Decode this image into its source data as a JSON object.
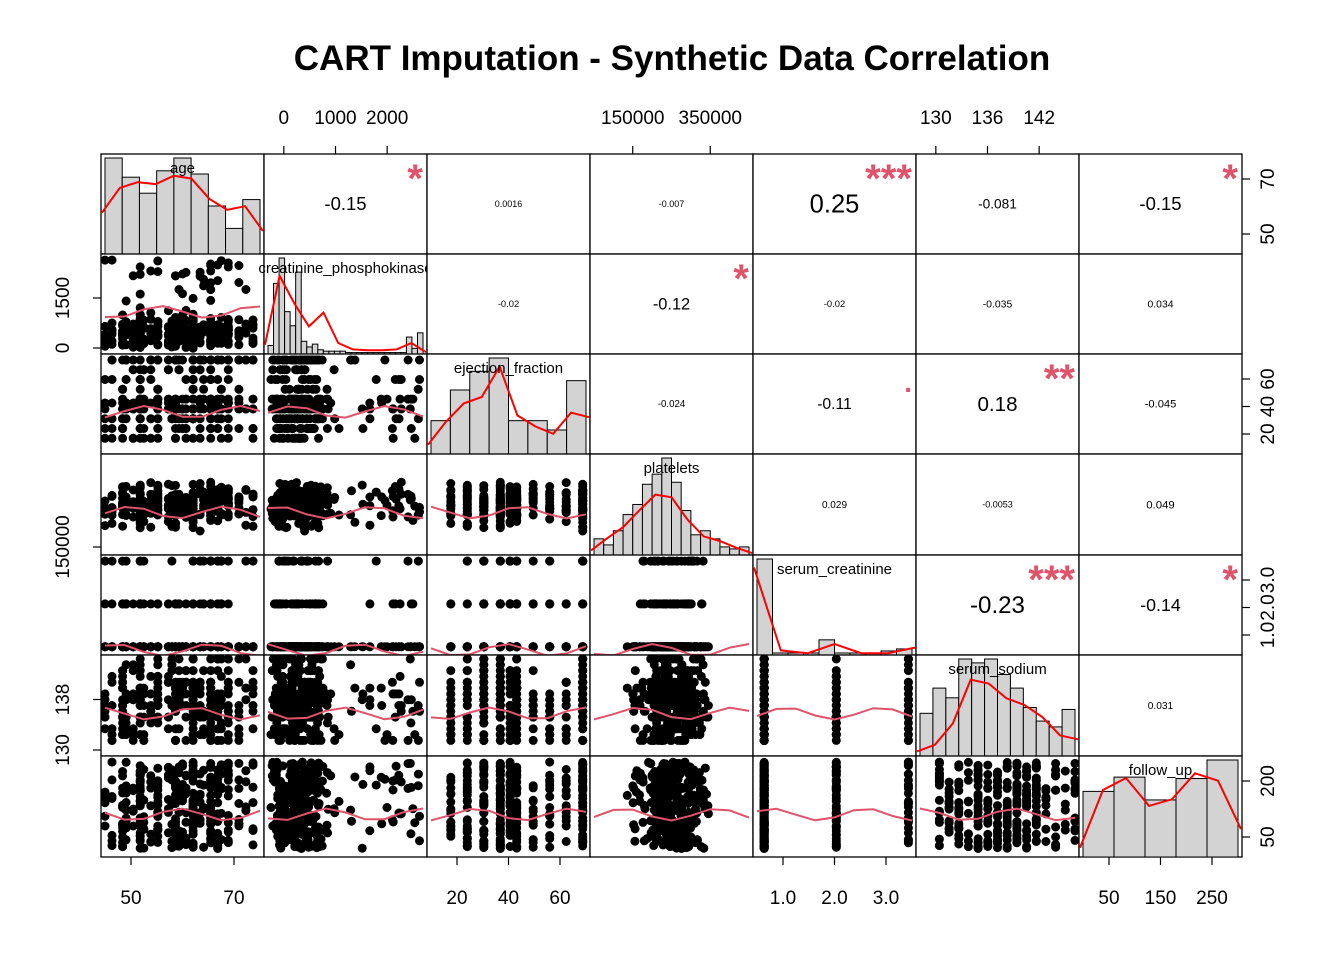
{
  "chart_data": {
    "type": "scatter-matrix",
    "title": "CART Imputation - Synthetic Data Correlation",
    "variables": [
      "age",
      "creatinine_phosphokinase",
      "ejection_fraction",
      "platelets",
      "serum_creatinine",
      "serum_sodium",
      "follow_up"
    ],
    "ranges": [
      [
        40,
        84
      ],
      [
        -30,
        2200
      ],
      [
        14,
        61
      ],
      [
        50000,
        480000
      ],
      [
        0.9,
        3.05
      ],
      [
        128,
        144
      ],
      [
        10,
        255
      ]
    ],
    "axis_ticks": {
      "top": [
        [
          "0",
          "1000",
          "2000"
        ],
        [
          "150000",
          "350000"
        ],
        [
          "130",
          "136",
          "142"
        ]
      ],
      "right": [
        [
          "50",
          "70"
        ],
        [
          "20",
          "40",
          "60"
        ],
        [
          "1.0",
          "2.0",
          "3.0"
        ],
        [
          "50",
          "200"
        ]
      ],
      "left": [
        [
          "0",
          "1500"
        ],
        [
          "150000"
        ],
        [
          "130",
          "138"
        ]
      ],
      "bottom": [
        [
          "50",
          "70"
        ],
        [
          "20",
          "40",
          "60"
        ],
        [
          "1.0",
          "2.0",
          "3.0"
        ],
        [
          "50",
          "150",
          "250"
        ]
      ]
    },
    "correlations": [
      {
        "row": 0,
        "col": 1,
        "value": "-0.15",
        "stars": "*"
      },
      {
        "row": 0,
        "col": 2,
        "value": "0.0016",
        "stars": ""
      },
      {
        "row": 0,
        "col": 3,
        "value": "-0.007",
        "stars": ""
      },
      {
        "row": 0,
        "col": 4,
        "value": "0.25",
        "stars": "***"
      },
      {
        "row": 0,
        "col": 5,
        "value": "-0.081",
        "stars": ""
      },
      {
        "row": 0,
        "col": 6,
        "value": "-0.15",
        "stars": "*"
      },
      {
        "row": 1,
        "col": 2,
        "value": "-0.02",
        "stars": ""
      },
      {
        "row": 1,
        "col": 3,
        "value": "-0.12",
        "stars": "*"
      },
      {
        "row": 1,
        "col": 4,
        "value": "-0.02",
        "stars": ""
      },
      {
        "row": 1,
        "col": 5,
        "value": "-0.035",
        "stars": ""
      },
      {
        "row": 1,
        "col": 6,
        "value": "0.034",
        "stars": ""
      },
      {
        "row": 2,
        "col": 3,
        "value": "-0.024",
        "stars": ""
      },
      {
        "row": 2,
        "col": 4,
        "value": "-0.11",
        "stars": "."
      },
      {
        "row": 2,
        "col": 5,
        "value": "0.18",
        "stars": "**"
      },
      {
        "row": 2,
        "col": 6,
        "value": "-0.045",
        "stars": ""
      },
      {
        "row": 3,
        "col": 4,
        "value": "0.029",
        "stars": ""
      },
      {
        "row": 3,
        "col": 5,
        "value": "-0.0053",
        "stars": ""
      },
      {
        "row": 3,
        "col": 6,
        "value": "0.049",
        "stars": ""
      },
      {
        "row": 4,
        "col": 5,
        "value": "-0.23",
        "stars": "***"
      },
      {
        "row": 4,
        "col": 6,
        "value": "-0.14",
        "stars": "*"
      },
      {
        "row": 5,
        "col": 6,
        "value": "0.031",
        "stars": ""
      }
    ],
    "histograms": [
      {
        "var": "age",
        "counts": [
          30,
          24,
          19,
          26,
          30,
          25,
          15,
          8,
          17
        ],
        "density": [
          0.45,
          0.72,
          0.78,
          0.76,
          0.85,
          0.82,
          0.6,
          0.48,
          0.52,
          0.25
        ]
      },
      {
        "var": "creatinine_phosphokinase",
        "counts": [
          6,
          50,
          68,
          30,
          20,
          58,
          9,
          5,
          7,
          3,
          2,
          2,
          2,
          2,
          1,
          1,
          1,
          1,
          1,
          1,
          1,
          1,
          1,
          1,
          1,
          12,
          4,
          15
        ],
        "density": [
          0.1,
          0.85,
          0.55,
          0.3,
          0.45,
          0.12,
          0.05,
          0.04,
          0.04,
          0.05,
          0.12,
          0.02
        ]
      },
      {
        "var": "ejection_fraction",
        "counts": [
          25,
          48,
          62,
          72,
          25,
          25,
          18,
          55
        ],
        "density": [
          0.1,
          0.35,
          0.55,
          0.62,
          0.95,
          0.42,
          0.3,
          0.22,
          0.45,
          0.4
        ]
      },
      {
        "var": "platelets",
        "counts": [
          8,
          5,
          12,
          20,
          25,
          35,
          40,
          48,
          36,
          22,
          10,
          12,
          8,
          4,
          3,
          4
        ],
        "density": [
          0.05,
          0.18,
          0.3,
          0.48,
          0.65,
          0.62,
          0.38,
          0.2,
          0.15,
          0.08,
          0.02
        ]
      },
      {
        "var": "serum_creatinine",
        "counts": [
          95,
          2,
          2,
          2,
          15,
          2,
          2,
          2,
          4,
          6
        ],
        "density": [
          0.95,
          0.05,
          0.02,
          0.12,
          0.02,
          0.02,
          0.08
        ]
      },
      {
        "var": "serum_sodium",
        "counts": [
          22,
          35,
          30,
          50,
          48,
          50,
          42,
          35,
          25,
          18,
          15,
          24
        ],
        "density": [
          0.05,
          0.12,
          0.35,
          0.82,
          0.78,
          0.62,
          0.55,
          0.42,
          0.22,
          0.18
        ]
      },
      {
        "var": "follow_up",
        "counts": [
          46,
          56,
          40,
          55,
          68
        ],
        "density": [
          0.1,
          0.72,
          0.85,
          0.55,
          0.62,
          0.9,
          0.82,
          0.3
        ]
      }
    ],
    "scatter_smooth": {
      "sample_size": 300,
      "smoother_color": "#DF536B",
      "point_color": "#000000"
    },
    "histogram_fill": "#D3D3D3",
    "density_color": "#FF0000"
  }
}
